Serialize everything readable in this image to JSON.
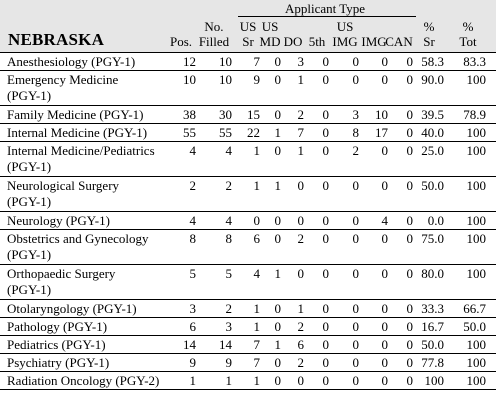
{
  "header": {
    "group_label": "Applicant Type",
    "state": "NEBRASKA",
    "columns": {
      "pos": [
        "Pos."
      ],
      "filled": [
        "No.",
        "Filled"
      ],
      "us_sr": [
        "US",
        "Sr"
      ],
      "us_md": [
        "US",
        "MD"
      ],
      "do": [
        "DO"
      ],
      "fifth": [
        "5th"
      ],
      "us_img": [
        "US",
        "IMG"
      ],
      "img": [
        "IMG"
      ],
      "can": [
        "CAN"
      ],
      "pct_sr": [
        "%",
        "Sr"
      ],
      "pct_tot": [
        "%",
        "Tot"
      ]
    }
  },
  "rows": [
    {
      "specialty": [
        "Anesthesiology (PGY-1)"
      ],
      "values": [
        "12",
        "10",
        "7",
        "0",
        "3",
        "0",
        "0",
        "0",
        "0",
        "58.3",
        "83.3"
      ]
    },
    {
      "specialty": [
        "Emergency Medicine",
        "(PGY-1)"
      ],
      "values": [
        "10",
        "10",
        "9",
        "0",
        "1",
        "0",
        "0",
        "0",
        "0",
        "90.0",
        "100"
      ]
    },
    {
      "specialty": [
        "Family Medicine (PGY-1)"
      ],
      "values": [
        "38",
        "30",
        "15",
        "0",
        "2",
        "0",
        "3",
        "10",
        "0",
        "39.5",
        "78.9"
      ]
    },
    {
      "specialty": [
        "Internal Medicine (PGY-1)"
      ],
      "values": [
        "55",
        "55",
        "22",
        "1",
        "7",
        "0",
        "8",
        "17",
        "0",
        "40.0",
        "100"
      ]
    },
    {
      "specialty": [
        "Internal Medicine/Pediatrics",
        "(PGY-1)"
      ],
      "values": [
        "4",
        "4",
        "1",
        "0",
        "1",
        "0",
        "2",
        "0",
        "0",
        "25.0",
        "100"
      ]
    },
    {
      "specialty": [
        "Neurological Surgery",
        "(PGY-1)"
      ],
      "values": [
        "2",
        "2",
        "1",
        "1",
        "0",
        "0",
        "0",
        "0",
        "0",
        "50.0",
        "100"
      ]
    },
    {
      "specialty": [
        "Neurology (PGY-1)"
      ],
      "values": [
        "4",
        "4",
        "0",
        "0",
        "0",
        "0",
        "0",
        "4",
        "0",
        "0.0",
        "100"
      ]
    },
    {
      "specialty": [
        "Obstetrics and Gynecology",
        "(PGY-1)"
      ],
      "values": [
        "8",
        "8",
        "6",
        "0",
        "2",
        "0",
        "0",
        "0",
        "0",
        "75.0",
        "100"
      ]
    },
    {
      "specialty": [
        "Orthopaedic Surgery",
        "(PGY-1)"
      ],
      "values": [
        "5",
        "5",
        "4",
        "1",
        "0",
        "0",
        "0",
        "0",
        "0",
        "80.0",
        "100"
      ]
    },
    {
      "specialty": [
        "Otolaryngology (PGY-1)"
      ],
      "values": [
        "3",
        "2",
        "1",
        "0",
        "1",
        "0",
        "0",
        "0",
        "0",
        "33.3",
        "66.7"
      ]
    },
    {
      "specialty": [
        "Pathology (PGY-1)"
      ],
      "values": [
        "6",
        "3",
        "1",
        "0",
        "2",
        "0",
        "0",
        "0",
        "0",
        "16.7",
        "50.0"
      ]
    },
    {
      "specialty": [
        "Pediatrics (PGY-1)"
      ],
      "values": [
        "14",
        "14",
        "7",
        "1",
        "6",
        "0",
        "0",
        "0",
        "0",
        "50.0",
        "100"
      ]
    },
    {
      "specialty": [
        "Psychiatry (PGY-1)"
      ],
      "values": [
        "9",
        "9",
        "7",
        "0",
        "2",
        "0",
        "0",
        "0",
        "0",
        "77.8",
        "100"
      ]
    },
    {
      "specialty": [
        "Radiation Oncology (PGY-2)"
      ],
      "values": [
        "1",
        "1",
        "1",
        "0",
        "0",
        "0",
        "0",
        "0",
        "0",
        "100",
        "100"
      ]
    }
  ]
}
